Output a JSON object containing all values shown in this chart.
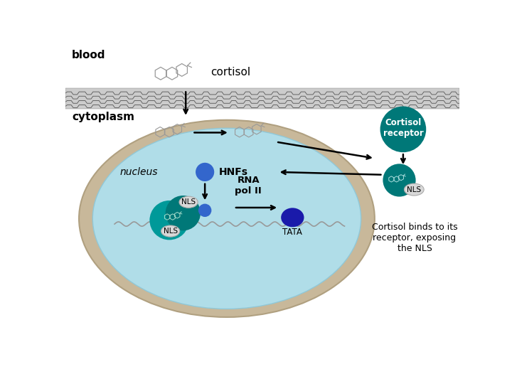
{
  "bg_color": "#ffffff",
  "blood_label": "blood",
  "cortisol_label": "cortisol",
  "cytoplasm_label": "cytoplasm",
  "nucleus_label": "nucleus",
  "hnfs_label": "HNFs",
  "rnapol_label": "RNA\npol II",
  "tata_label": "TATA",
  "nls_label": "NLS",
  "cortisol_receptor_label": "Cortisol\nreceptor",
  "cortisol_binds_label": "Cortisol binds to its\nreceptor, exposing\nthe NLS",
  "membrane_color": "#888888",
  "nucleus_outer_color": "#c8b89a",
  "nucleus_inner_color": "#b0dde8",
  "teal_color": "#007878",
  "teal2_color": "#009999",
  "dark_blue_color": "#1a1aaa",
  "medium_blue_color": "#3366cc",
  "nls_color": "#d8d8d8",
  "cortisol_receptor_color": "#007878",
  "steroid_edge": "#999999",
  "black": "#000000"
}
